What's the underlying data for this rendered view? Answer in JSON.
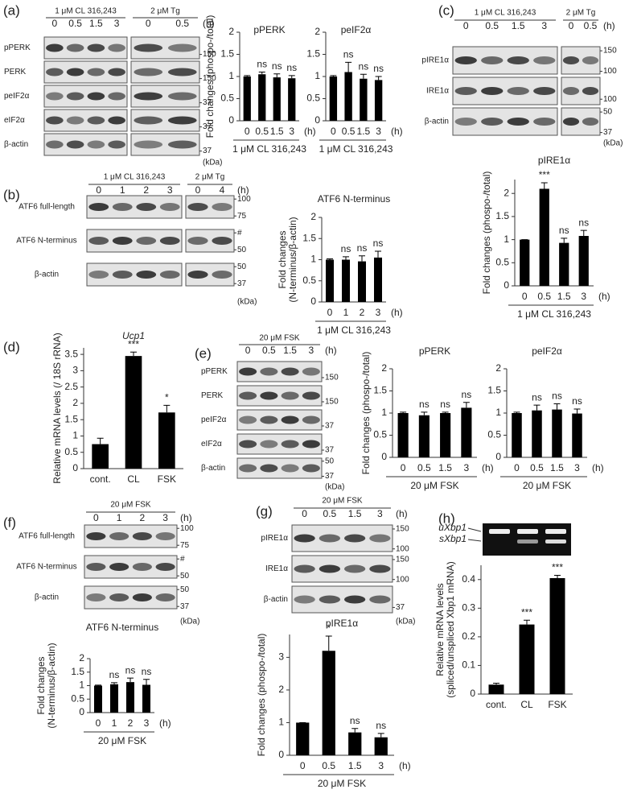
{
  "panel_letters": [
    "(a)",
    "(b)",
    "(c)",
    "(d)",
    "(e)",
    "(f)",
    "(g)",
    "(h)"
  ],
  "blots": [
    {
      "groups": [
        {
          "label": "1 μM CL 316,243",
          "times": [
            "0",
            "0.5",
            "1.5",
            "3"
          ]
        },
        {
          "label": "2 μM Tg",
          "times": [
            "0",
            "0.5"
          ]
        }
      ],
      "unit": "(h)",
      "rows": [
        {
          "label": "pPERK",
          "markers": [
            "150"
          ]
        },
        {
          "label": "PERK",
          "markers": [
            "150"
          ]
        },
        {
          "label": "peIF2α",
          "markers": [
            "37"
          ]
        },
        {
          "label": "eIF2α",
          "markers": [
            "37"
          ]
        },
        {
          "label": "β-actin",
          "markers": [
            "37"
          ]
        }
      ],
      "kda": "(kDa)"
    },
    {
      "groups": [
        {
          "label": "1 μM CL 316,243",
          "times": [
            "0",
            "1",
            "2",
            "3"
          ]
        },
        {
          "label": "2 μM Tg",
          "times": [
            "0",
            "4"
          ]
        }
      ],
      "unit": "(h)",
      "rows": [
        {
          "label": "ATF6 full-length",
          "markers": [
            "100",
            "75"
          ]
        },
        {
          "label": "ATF6 N-terminus",
          "markers": [
            "#",
            "50"
          ]
        },
        {
          "label": "β-actin",
          "markers": [
            "50",
            "37"
          ]
        }
      ],
      "kda": "(kDa)"
    },
    {
      "groups": [
        {
          "label": "1 μM CL 316,243",
          "times": [
            "0",
            "0.5",
            "1.5",
            "3"
          ]
        },
        {
          "label": "2 μM Tg",
          "times": [
            "0",
            "0.5"
          ]
        }
      ],
      "unit": "(h)",
      "rows": [
        {
          "label": "pIRE1α",
          "markers": [
            "150",
            "100"
          ]
        },
        {
          "label": "IRE1α",
          "markers": [
            "100"
          ]
        },
        {
          "label": "β-actin",
          "markers": [
            "50",
            "37"
          ]
        }
      ],
      "kda": "(kDa)"
    },
    {
      "groups": [
        {
          "label": "20 μM FSK",
          "times": [
            "0",
            "0.5",
            "1.5",
            "3"
          ]
        }
      ],
      "unit": "(h)",
      "rows": [
        {
          "label": "pPERK",
          "markers": [
            "150"
          ]
        },
        {
          "label": "PERK",
          "markers": [
            "150"
          ]
        },
        {
          "label": "peIF2α",
          "markers": [
            "37"
          ]
        },
        {
          "label": "eIF2α",
          "markers": [
            "37"
          ]
        },
        {
          "label": "β-actin",
          "markers": [
            "50",
            "37"
          ]
        }
      ],
      "kda": "(kDa)"
    },
    {
      "groups": [
        {
          "label": "20 μM FSK",
          "times": [
            "0",
            "1",
            "2",
            "3"
          ]
        }
      ],
      "unit": "(h)",
      "rows": [
        {
          "label": "ATF6 full-length",
          "markers": [
            "100",
            "75"
          ]
        },
        {
          "label": "ATF6 N-terminus",
          "markers": [
            "#",
            "50"
          ]
        },
        {
          "label": "β-actin",
          "markers": [
            "50",
            "37"
          ]
        }
      ],
      "kda": "(kDa)"
    },
    {
      "groups": [
        {
          "label": "20 μM FSK",
          "times": [
            "0",
            "0.5",
            "1.5",
            "3"
          ]
        }
      ],
      "unit": "(h)",
      "rows": [
        {
          "label": "pIRE1α",
          "markers": [
            "150",
            "100"
          ]
        },
        {
          "label": "IRE1α",
          "markers": [
            "150",
            "100"
          ]
        },
        {
          "label": "β-actin",
          "markers": [
            "37"
          ]
        }
      ],
      "kda": "(kDa)"
    }
  ],
  "gel": {
    "labels": [
      "uXbp1",
      "sXbp1"
    ]
  },
  "chart_data": [
    {
      "type": "bar",
      "title": "pPERK",
      "ylabel": [
        "Fold changes (phospo-/total)"
      ],
      "categories": [
        "0",
        "0.5",
        "1.5",
        "3"
      ],
      "x_unit": "(h)",
      "x_group": "1 μM CL 316,243",
      "values": [
        1,
        1.05,
        0.98,
        0.96
      ],
      "errors": [
        0.02,
        0.05,
        0.08,
        0.06
      ],
      "annotations": [
        null,
        "ns",
        "ns",
        "ns"
      ],
      "color": "#000000",
      "ylim": [
        0,
        2
      ],
      "yticks": [
        0,
        0.5,
        1,
        1.5,
        2
      ]
    },
    {
      "type": "bar",
      "title": "peIF2α",
      "categories": [
        "0",
        "0.5",
        "1.5",
        "3"
      ],
      "x_unit": "(h)",
      "x_group": "1 μM CL 316,243",
      "values": [
        1,
        1.1,
        0.95,
        0.92
      ],
      "errors": [
        0.02,
        0.22,
        0.1,
        0.08
      ],
      "annotations": [
        null,
        "ns",
        "ns",
        "ns"
      ],
      "color": "#000000",
      "ylim": [
        0,
        2
      ],
      "yticks": [
        0,
        0.5,
        1,
        1.5,
        2
      ]
    },
    {
      "type": "bar",
      "title": "ATF6 N-terminus",
      "ylabel": [
        "Fold changes",
        "(N-terminus/β-actin)"
      ],
      "categories": [
        "0",
        "1",
        "2",
        "3"
      ],
      "x_unit": "(h)",
      "x_group": "1 μM CL 316,243",
      "values": [
        1,
        1.0,
        0.96,
        1.05
      ],
      "errors": [
        0.02,
        0.07,
        0.13,
        0.15
      ],
      "annotations": [
        null,
        "ns",
        "ns",
        "ns"
      ],
      "color": "#000000",
      "ylim": [
        0,
        2
      ],
      "yticks": [
        0,
        0.5,
        1,
        1.5,
        2
      ]
    },
    {
      "type": "bar",
      "title": "pIRE1α",
      "ylabel": [
        "Fold changes (phospo-/total)"
      ],
      "categories": [
        "0",
        "0.5",
        "1.5",
        "3"
      ],
      "x_unit": "(h)",
      "x_group": "1 μM CL 316,243",
      "values": [
        1,
        2.1,
        0.93,
        1.08
      ],
      "errors": [
        0,
        0.13,
        0.1,
        0.12
      ],
      "annotations": [
        null,
        "***",
        "ns",
        "ns"
      ],
      "color": "#000000",
      "ylim": [
        0,
        2.3
      ],
      "yticks": [
        0,
        0.5,
        1,
        1.5,
        2
      ]
    },
    {
      "type": "bar",
      "title": "Ucp1",
      "title_italic": true,
      "ylabel": [
        "Relative mRNA levels (/ 18S rRNA)"
      ],
      "categories": [
        "cont.",
        "CL",
        "FSK"
      ],
      "values": [
        0.75,
        3.45,
        1.72
      ],
      "errors": [
        0.18,
        0.12,
        0.22
      ],
      "annotations": [
        null,
        "***",
        "*"
      ],
      "color": "#000000",
      "ylim": [
        0,
        3.7
      ],
      "yticks": [
        0,
        0.5,
        1,
        1.5,
        2,
        2.5,
        3,
        3.5
      ]
    },
    {
      "type": "bar",
      "title": "pPERK",
      "ylabel": [
        "Fold changes (phospo-/total)"
      ],
      "categories": [
        "0",
        "0.5",
        "1.5",
        "3"
      ],
      "x_unit": "(h)",
      "x_group": "20 μM FSK",
      "values": [
        1,
        0.95,
        1.0,
        1.12
      ],
      "errors": [
        0.02,
        0.07,
        0.02,
        0.12
      ],
      "annotations": [
        null,
        "ns",
        "ns",
        "ns"
      ],
      "color": "#000000",
      "ylim": [
        0,
        2
      ],
      "yticks": [
        0,
        0.5,
        1,
        1.5,
        2
      ]
    },
    {
      "type": "bar",
      "title": "peIF2α",
      "categories": [
        "0",
        "0.5",
        "1.5",
        "3"
      ],
      "x_unit": "(h)",
      "x_group": "20 μM FSK",
      "values": [
        1,
        1.06,
        1.08,
        0.99
      ],
      "errors": [
        0.02,
        0.12,
        0.13,
        0.1
      ],
      "annotations": [
        null,
        "ns",
        "ns",
        "ns"
      ],
      "color": "#000000",
      "ylim": [
        0,
        2
      ],
      "yticks": [
        0,
        0.5,
        1,
        1.5,
        2
      ]
    },
    {
      "type": "bar",
      "title": "ATF6 N-terminus",
      "ylabel": [
        "Fold changes",
        "(N-terminus/β-actin)"
      ],
      "categories": [
        "0",
        "1",
        "2",
        "3"
      ],
      "x_unit": "(h)",
      "x_group": "20 μM FSK",
      "values": [
        1,
        1.05,
        1.13,
        1.03
      ],
      "errors": [
        0.02,
        0.06,
        0.15,
        0.2
      ],
      "annotations": [
        null,
        "ns",
        "ns",
        "ns"
      ],
      "color": "#000000",
      "ylim": [
        0,
        2
      ],
      "yticks": [
        0,
        0.5,
        1,
        1.5,
        2
      ]
    },
    {
      "type": "bar",
      "title": "pIRE1α",
      "ylabel": [
        "Fold changes (phospo-/total)"
      ],
      "categories": [
        "0",
        "0.5",
        "1.5",
        "3"
      ],
      "x_unit": "(h)",
      "x_group": "20 μM FSK",
      "values": [
        1,
        3.2,
        0.7,
        0.55
      ],
      "errors": [
        0,
        0.45,
        0.12,
        0.12
      ],
      "annotations": [
        null,
        "*",
        "ns",
        "ns"
      ],
      "color": "#000000",
      "ylim": [
        0,
        3.7
      ],
      "yticks": [
        0,
        1,
        2,
        3
      ]
    },
    {
      "type": "bar",
      "ylabel": [
        "Relative mRNA levels",
        "(spliced/unspliced Xbp1 mRNA)"
      ],
      "categories": [
        "cont.",
        "CL",
        "FSK"
      ],
      "values": [
        0.033,
        0.243,
        0.405
      ],
      "errors": [
        0.005,
        0.015,
        0.01
      ],
      "annotations": [
        null,
        "***",
        "***"
      ],
      "color": "#000000",
      "ylim": [
        0,
        0.45
      ],
      "yticks": [
        0,
        0.1,
        0.2,
        0.3,
        0.4
      ]
    }
  ]
}
